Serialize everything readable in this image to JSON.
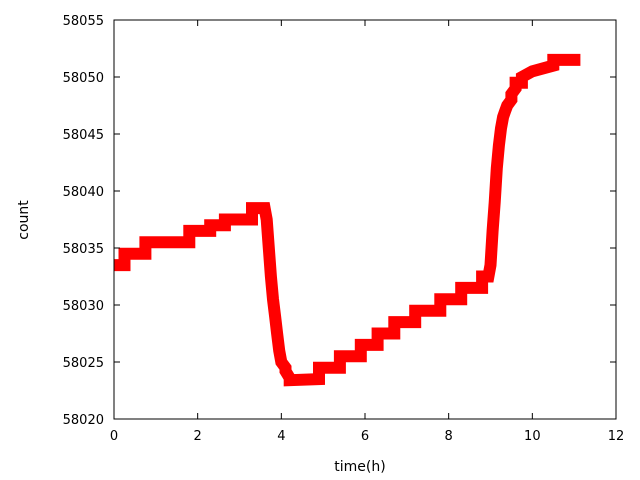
{
  "chart_data": {
    "type": "line",
    "title": "",
    "xlabel": "time(h)",
    "ylabel": "count",
    "xlim": [
      0,
      12
    ],
    "ylim": [
      58020,
      58055
    ],
    "xticks": [
      0,
      2,
      4,
      6,
      8,
      10,
      12
    ],
    "yticks": [
      58020,
      58025,
      58030,
      58035,
      58040,
      58045,
      58050,
      58055
    ],
    "grid": false,
    "legend": "none",
    "series": [
      {
        "color": "#ff0000",
        "style": "thick-band",
        "x": [
          0.0,
          0.25,
          0.25,
          0.75,
          0.75,
          1.8,
          1.8,
          2.3,
          2.3,
          2.65,
          2.65,
          3.3,
          3.3,
          3.6,
          3.65,
          3.7,
          3.75,
          3.8,
          3.85,
          3.9,
          3.95,
          4.0,
          4.1,
          4.1,
          4.2,
          4.2,
          4.9,
          4.9,
          5.4,
          5.4,
          5.9,
          5.9,
          6.3,
          6.3,
          6.7,
          6.7,
          7.2,
          7.2,
          7.8,
          7.8,
          8.3,
          8.3,
          8.8,
          8.8,
          8.95,
          9.0,
          9.05,
          9.1,
          9.15,
          9.2,
          9.25,
          9.3,
          9.35,
          9.4,
          9.5,
          9.5,
          9.6,
          9.6,
          9.75,
          9.75,
          10.0,
          10.0,
          10.5,
          10.5,
          11.0,
          11.15
        ],
        "y": [
          58033.5,
          58033.5,
          58034.5,
          58034.5,
          58035.5,
          58035.5,
          58036.5,
          58036.5,
          58037.0,
          58037.0,
          58037.5,
          58037.5,
          58038.5,
          58038.5,
          58037.5,
          58035.0,
          58032.5,
          58030.5,
          58029.0,
          58027.5,
          58026.0,
          58025.0,
          58024.5,
          58024.2,
          58023.6,
          58023.4,
          58023.5,
          58024.5,
          58024.5,
          58025.5,
          58025.5,
          58026.5,
          58026.5,
          58027.5,
          58027.5,
          58028.5,
          58028.5,
          58029.5,
          58029.5,
          58030.5,
          58030.5,
          58031.5,
          58031.5,
          58032.5,
          58032.5,
          58033.5,
          58036.5,
          58039.0,
          58042.0,
          58044.0,
          58045.5,
          58046.5,
          58047.0,
          58047.5,
          58048.0,
          58048.5,
          58049.0,
          58049.5,
          58049.5,
          58050.0,
          58050.5,
          58050.5,
          58051.0,
          58051.5,
          58051.5,
          58051.5
        ]
      }
    ]
  }
}
